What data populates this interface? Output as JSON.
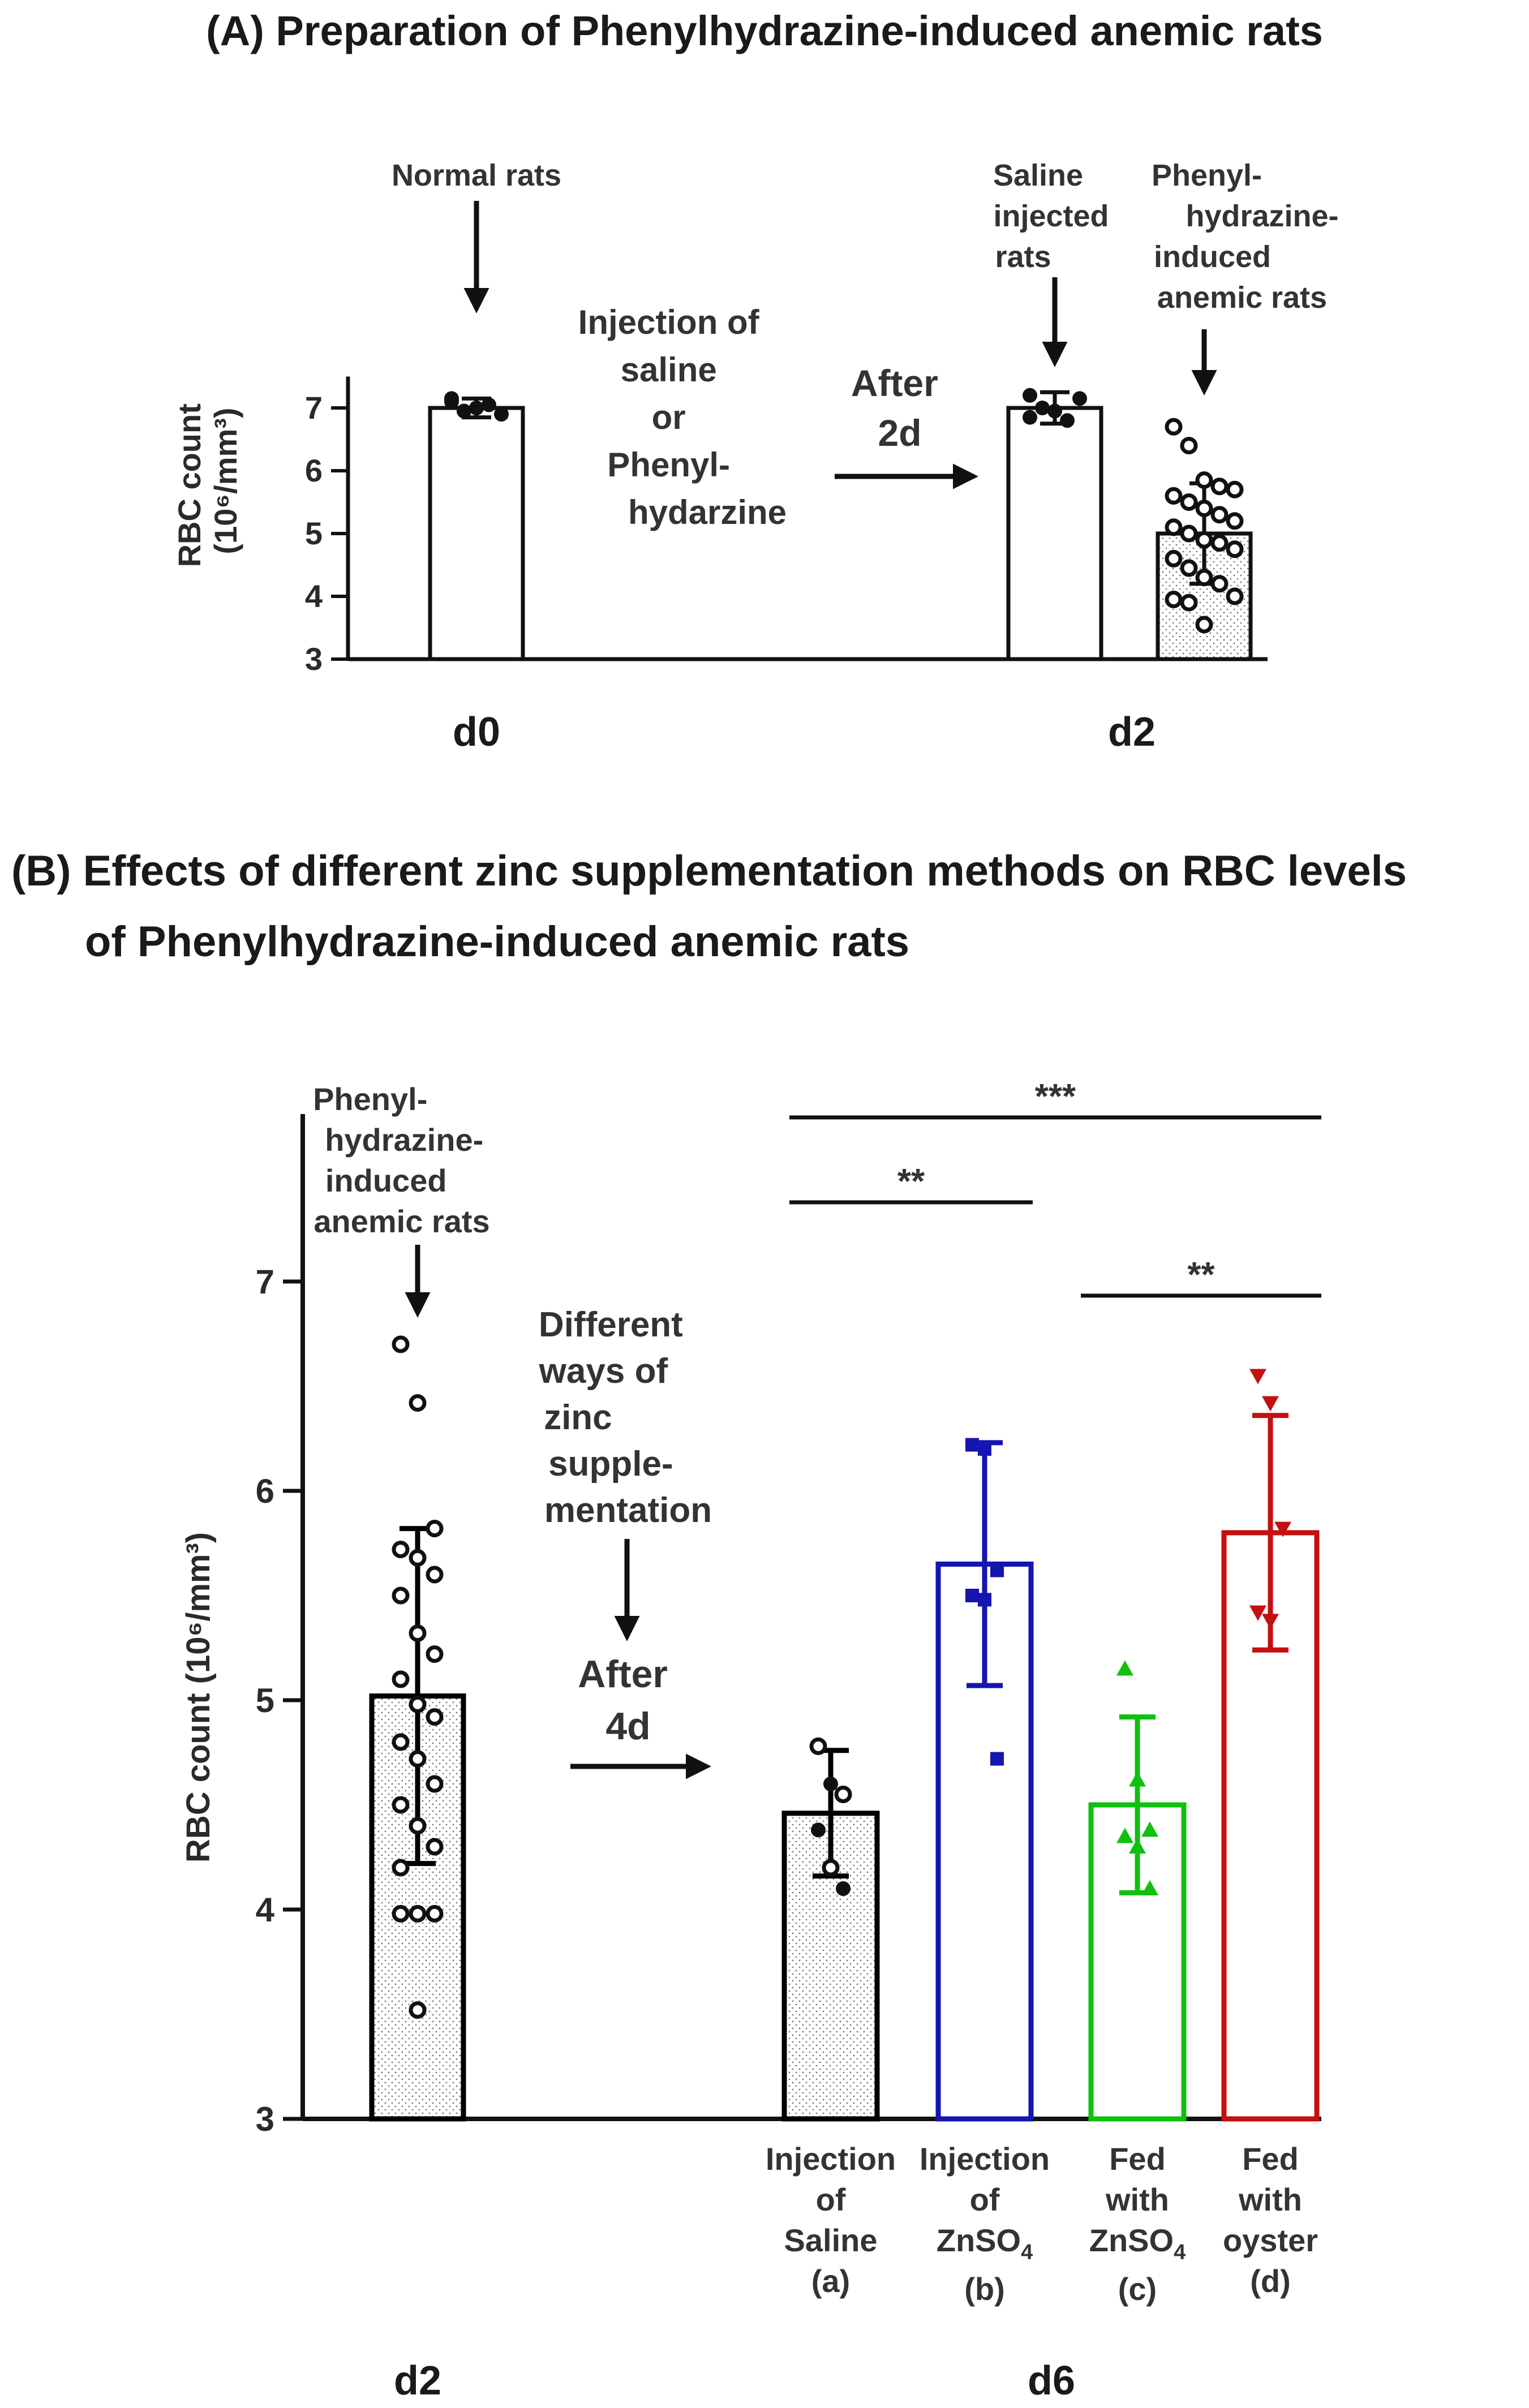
{
  "panel_a": {
    "title": "(A) Preparation of Phenylhydrazine-induced anemic rats",
    "ylabel_main": "RBC count",
    "ylabel_unit": "(10⁶/mm³)",
    "ann_normal": "Normal rats",
    "ann_injection": [
      "Injection of",
      "saline",
      "or",
      "Phenyl-",
      "hydarzine"
    ],
    "ann_after": [
      "After",
      "2d"
    ],
    "ann_saline": [
      "Saline",
      "injected",
      "rats"
    ],
    "ann_phz": [
      "Phenyl-",
      "hydrazine-",
      "induced",
      "anemic rats"
    ],
    "day_labels": [
      "d0",
      "d2"
    ]
  },
  "panel_b": {
    "title_line1": "(B) Effects of different zinc supplementation methods on RBC levels",
    "title_line2": "of Phenylhydrazine-induced anemic rats",
    "ylabel": "RBC count (10⁶/mm³)",
    "ann_phz": [
      "Phenyl-",
      "hydrazine-",
      "induced",
      "anemic rats"
    ],
    "ann_ways": [
      "Different",
      "ways of",
      "zinc",
      "supple-",
      "mentation"
    ],
    "ann_after": [
      "After",
      "4d"
    ],
    "groups": [
      {
        "lines": [
          "Injection",
          "of",
          "Saline",
          "(a)"
        ]
      },
      {
        "lines": [
          "Injection",
          "of",
          "ZnSO",
          "(b)"
        ],
        "sub": "4"
      },
      {
        "lines": [
          "Fed",
          "with",
          "ZnSO",
          "(c)"
        ],
        "sub": "4"
      },
      {
        "lines": [
          "Fed",
          "with",
          "oyster",
          "(d)"
        ]
      }
    ],
    "sig": [
      "***",
      "**",
      "**"
    ],
    "day_labels": [
      "d2",
      "d6"
    ]
  },
  "chart_data": [
    {
      "type": "bar",
      "title": "(A) Preparation of Phenylhydrazine-induced anemic rats",
      "ylabel": "RBC count (10⁶/mm³)",
      "ylim": [
        3,
        7.5
      ],
      "yticks": [
        3,
        4,
        5,
        6,
        7
      ],
      "categories": [
        "Normal rats (d0)",
        "Saline injected rats (d2)",
        "Phenylhydrazine-induced anemic rats (d2)"
      ],
      "values": [
        7.0,
        7.0,
        5.0
      ],
      "errors": [
        0.15,
        0.25,
        0.8
      ],
      "points": [
        [
          7.1,
          6.95,
          7.0,
          7.05,
          6.9,
          7.15,
          6.95,
          7.0
        ],
        [
          7.2,
          7.0,
          6.95,
          6.8,
          7.15,
          6.85
        ],
        [
          6.7,
          6.4,
          5.85,
          5.75,
          5.7,
          5.6,
          5.5,
          5.4,
          5.3,
          5.2,
          5.1,
          5.0,
          4.9,
          4.85,
          4.75,
          4.6,
          4.45,
          4.3,
          4.2,
          4.0,
          3.95,
          3.9,
          3.55
        ]
      ]
    },
    {
      "type": "bar",
      "title": "(B) Effects of different zinc supplementation methods on RBC levels of Phenylhydrazine-induced anemic rats",
      "ylabel": "RBC count (10⁶/mm³)",
      "ylim": [
        3,
        7.8
      ],
      "yticks": [
        3,
        4,
        5,
        6,
        7
      ],
      "categories": [
        "Phenylhydrazine-induced anemic rats (d2)",
        "Injection of Saline (a)",
        "Injection of ZnSO4 (b)",
        "Fed with ZnSO4 (c)",
        "Fed with oyster (d)"
      ],
      "values": [
        5.02,
        4.46,
        5.65,
        4.5,
        5.8
      ],
      "errors": [
        0.8,
        0.3,
        0.58,
        0.42,
        0.56
      ],
      "points": [
        [
          6.7,
          6.42,
          5.82,
          5.72,
          5.68,
          5.6,
          5.5,
          5.32,
          5.22,
          5.1,
          4.98,
          4.92,
          4.8,
          4.72,
          4.6,
          4.5,
          4.4,
          4.3,
          4.2,
          3.98,
          3.98,
          3.98,
          3.52
        ],
        [
          4.78,
          4.6,
          4.55,
          4.38,
          4.2,
          4.1
        ],
        [
          6.22,
          6.2,
          5.62,
          5.5,
          5.48,
          4.72
        ],
        [
          5.15,
          4.62,
          4.38,
          4.35,
          4.3,
          4.1
        ],
        [
          6.55,
          6.42,
          5.82,
          5.42,
          5.38
        ]
      ],
      "colors": [
        "#000000",
        "#000000",
        "#1515b0",
        "#10c010",
        "#c41010"
      ],
      "significance": [
        {
          "from": "a",
          "to": "d",
          "label": "***"
        },
        {
          "from": "a",
          "to": "b",
          "label": "**"
        },
        {
          "from": "c",
          "to": "d",
          "label": "**"
        }
      ]
    }
  ]
}
